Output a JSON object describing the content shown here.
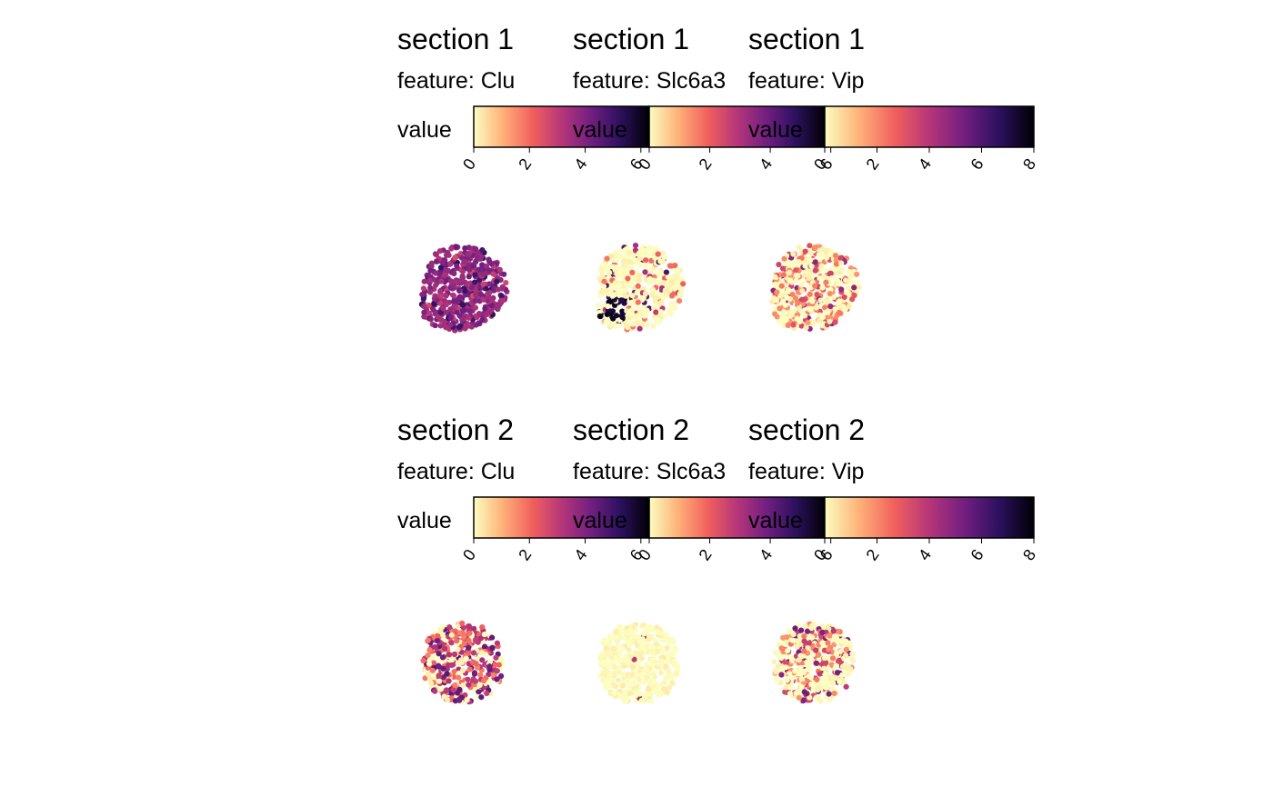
{
  "colors": {
    "scale": "magma (reversed)",
    "stops": [
      "#fcfdbf",
      "#feb078",
      "#f1605d",
      "#b63679",
      "#721f81",
      "#2c115f",
      "#000004"
    ]
  },
  "legend_label": "value",
  "chart_data": [
    {
      "type": "scatter",
      "title": "section 1",
      "subtitle_prefix": "feature:",
      "feature": "Clu",
      "colorbar": {
        "title": "value",
        "range": [
          0,
          6.3
        ],
        "ticks": [
          "0",
          "2",
          "4",
          "6"
        ]
      },
      "shape": "irregular",
      "color_mix": [
        [
          0.45,
          0.1
        ],
        [
          0.55,
          0.45
        ],
        [
          0.65,
          0.35
        ],
        [
          0.8,
          0.1
        ]
      ],
      "hotspot": null
    },
    {
      "type": "scatter",
      "title": "section 1",
      "subtitle_prefix": "feature:",
      "feature": "Slc6a3",
      "colorbar": {
        "title": "value",
        "range": [
          0,
          5.8
        ],
        "ticks": [
          "0",
          "2",
          "4",
          "6"
        ]
      },
      "shape": "irregular",
      "color_mix": [
        [
          0.0,
          0.82
        ],
        [
          0.3,
          0.08
        ],
        [
          0.5,
          0.05
        ],
        [
          0.75,
          0.05
        ]
      ],
      "hotspot": "lower-left"
    },
    {
      "type": "scatter",
      "title": "section 1",
      "subtitle_prefix": "feature:",
      "feature": "Vip",
      "colorbar": {
        "title": "value",
        "range": [
          0,
          8
        ],
        "ticks": [
          "0",
          "2",
          "4",
          "6",
          "8"
        ]
      },
      "shape": "irregular",
      "color_mix": [
        [
          0.0,
          0.6
        ],
        [
          0.25,
          0.22
        ],
        [
          0.4,
          0.1
        ],
        [
          0.6,
          0.08
        ]
      ],
      "hotspot": null
    },
    {
      "type": "scatter",
      "title": "section 2",
      "subtitle_prefix": "feature:",
      "feature": "Clu",
      "colorbar": {
        "title": "value",
        "range": [
          0,
          6.3
        ],
        "ticks": [
          "0",
          "2",
          "4",
          "6"
        ]
      },
      "shape": "round",
      "color_mix": [
        [
          0.0,
          0.3
        ],
        [
          0.3,
          0.25
        ],
        [
          0.5,
          0.3
        ],
        [
          0.7,
          0.15
        ]
      ],
      "hotspot": null
    },
    {
      "type": "scatter",
      "title": "section 2",
      "subtitle_prefix": "feature:",
      "feature": "Slc6a3",
      "colorbar": {
        "title": "value",
        "range": [
          0,
          5.8
        ],
        "ticks": [
          "0",
          "2",
          "4",
          "6"
        ]
      },
      "shape": "round",
      "color_mix": [
        [
          0.0,
          0.995
        ],
        [
          0.5,
          0.005
        ]
      ],
      "hotspot": null
    },
    {
      "type": "scatter",
      "title": "section 2",
      "subtitle_prefix": "feature:",
      "feature": "Vip",
      "colorbar": {
        "title": "value",
        "range": [
          0,
          8
        ],
        "ticks": [
          "0",
          "2",
          "4",
          "6",
          "8"
        ]
      },
      "shape": "round",
      "color_mix": [
        [
          0.0,
          0.55
        ],
        [
          0.25,
          0.2
        ],
        [
          0.45,
          0.15
        ],
        [
          0.65,
          0.1
        ]
      ],
      "hotspot": null
    }
  ]
}
